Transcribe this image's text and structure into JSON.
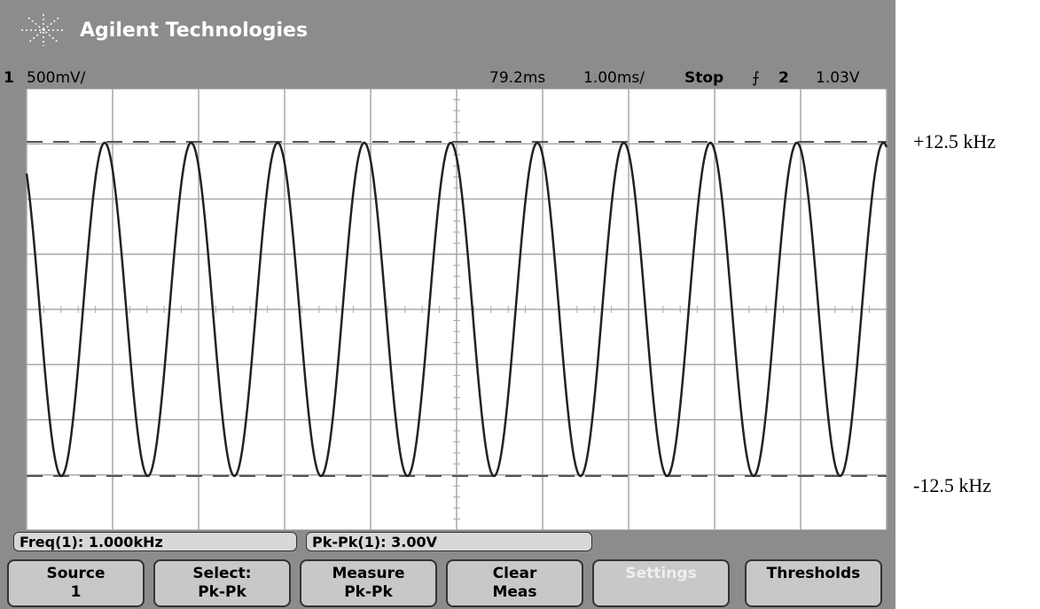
{
  "header": {
    "brand": "Agilent Technologies"
  },
  "status": {
    "channel": "1",
    "scale": "500mV/",
    "delay": "79.2ms",
    "timebase": "1.00ms/",
    "mode": "Stop",
    "trigger_channel": "2",
    "trigger_level": "1.03V"
  },
  "annotations": {
    "upper": "+12.5 kHz",
    "lower": "-12.5 kHz"
  },
  "measurements": [
    "Freq(1): 1.000kHz",
    "Pk-Pk(1): 3.00V"
  ],
  "softkeys": [
    {
      "line1": "Source",
      "line2": "1"
    },
    {
      "line1": "Select:",
      "line2": "Pk-Pk"
    },
    {
      "line1": "Measure",
      "line2": "Pk-Pk"
    },
    {
      "line1": "Clear",
      "line2": "Meas"
    },
    {
      "line1": "Settings"
    },
    {
      "line1": "Thresholds"
    }
  ]
}
